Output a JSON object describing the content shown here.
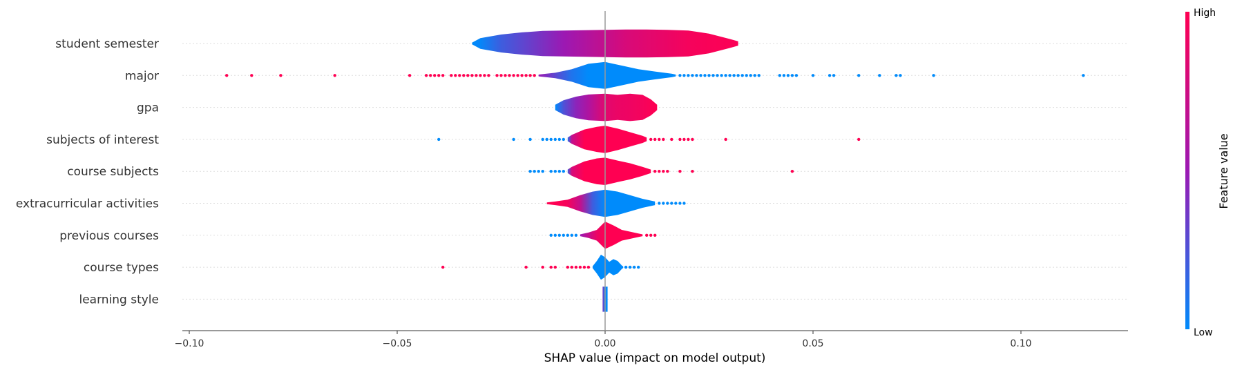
{
  "chart_data": {
    "type": "scatter",
    "subtype": "shap-violin-summary",
    "xlabel": "SHAP value (impact on model output)",
    "xlim": [
      -0.102,
      0.125
    ],
    "xticks": [
      -0.1,
      -0.05,
      0.0,
      0.05,
      0.1
    ],
    "xtick_labels": [
      "−0.10",
      "−0.05",
      "0.00",
      "0.05",
      "0.10"
    ],
    "colorbar": {
      "label": "Feature value",
      "high_label": "High",
      "low_label": "Low",
      "low_color": "#008bfb",
      "high_color": "#ff0052"
    },
    "features": [
      {
        "name": "student semester",
        "violin": [
          [
            -0.032,
            0.05,
            0.0
          ],
          [
            -0.03,
            0.3,
            0.02
          ],
          [
            -0.025,
            0.5,
            0.2
          ],
          [
            -0.02,
            0.62,
            0.3
          ],
          [
            -0.015,
            0.7,
            0.4
          ],
          [
            -0.01,
            0.72,
            0.5
          ],
          [
            -0.005,
            0.74,
            0.6
          ],
          [
            0.0,
            0.76,
            0.7
          ],
          [
            0.005,
            0.78,
            0.8
          ],
          [
            0.01,
            0.78,
            0.85
          ],
          [
            0.015,
            0.76,
            0.9
          ],
          [
            0.02,
            0.72,
            0.95
          ],
          [
            0.025,
            0.55,
            0.97
          ],
          [
            0.03,
            0.25,
            0.98
          ],
          [
            0.032,
            0.12,
            0.98
          ]
        ],
        "points": []
      },
      {
        "name": "major",
        "violin": [
          [
            -0.016,
            0.05,
            0.5
          ],
          [
            -0.012,
            0.15,
            0.3
          ],
          [
            -0.008,
            0.35,
            0.1
          ],
          [
            -0.004,
            0.65,
            0.0
          ],
          [
            0.0,
            0.75,
            0.0
          ],
          [
            0.004,
            0.55,
            0.0
          ],
          [
            0.008,
            0.35,
            0.0
          ],
          [
            0.012,
            0.22,
            0.0
          ],
          [
            0.016,
            0.1,
            0.0
          ],
          [
            0.017,
            0.05,
            0.0
          ]
        ],
        "points": [
          [
            -0.091,
            1
          ],
          [
            -0.085,
            1
          ],
          [
            -0.078,
            1
          ],
          [
            -0.065,
            1
          ],
          [
            -0.047,
            1
          ],
          [
            -0.043,
            1
          ],
          [
            -0.042,
            1
          ],
          [
            -0.041,
            1
          ],
          [
            -0.04,
            1
          ],
          [
            -0.039,
            1
          ],
          [
            -0.037,
            1
          ],
          [
            -0.036,
            1
          ],
          [
            -0.035,
            1
          ],
          [
            -0.034,
            1
          ],
          [
            -0.033,
            1
          ],
          [
            -0.032,
            1
          ],
          [
            -0.031,
            1
          ],
          [
            -0.03,
            1
          ],
          [
            -0.029,
            1
          ],
          [
            -0.028,
            1
          ],
          [
            -0.026,
            1
          ],
          [
            -0.025,
            1
          ],
          [
            -0.024,
            1
          ],
          [
            -0.023,
            1
          ],
          [
            -0.022,
            1
          ],
          [
            -0.021,
            1
          ],
          [
            -0.02,
            1
          ],
          [
            -0.019,
            1
          ],
          [
            -0.018,
            1
          ],
          [
            -0.017,
            1
          ],
          [
            0.018,
            0
          ],
          [
            0.019,
            0
          ],
          [
            0.02,
            0
          ],
          [
            0.021,
            0
          ],
          [
            0.022,
            0
          ],
          [
            0.023,
            0
          ],
          [
            0.024,
            0
          ],
          [
            0.025,
            0
          ],
          [
            0.026,
            0
          ],
          [
            0.027,
            0
          ],
          [
            0.028,
            0
          ],
          [
            0.029,
            0
          ],
          [
            0.03,
            0
          ],
          [
            0.031,
            0
          ],
          [
            0.032,
            0
          ],
          [
            0.033,
            0
          ],
          [
            0.034,
            0
          ],
          [
            0.035,
            0
          ],
          [
            0.036,
            0
          ],
          [
            0.037,
            0
          ],
          [
            0.042,
            0
          ],
          [
            0.043,
            0
          ],
          [
            0.044,
            0
          ],
          [
            0.045,
            0
          ],
          [
            0.046,
            0
          ],
          [
            0.05,
            0
          ],
          [
            0.054,
            0
          ],
          [
            0.055,
            0
          ],
          [
            0.061,
            0
          ],
          [
            0.066,
            0
          ],
          [
            0.07,
            0
          ],
          [
            0.071,
            0
          ],
          [
            0.079,
            0
          ],
          [
            0.115,
            0
          ]
        ]
      },
      {
        "name": "gpa",
        "violin": [
          [
            -0.012,
            0.15,
            0.0
          ],
          [
            -0.01,
            0.4,
            0.25
          ],
          [
            -0.007,
            0.6,
            0.45
          ],
          [
            -0.004,
            0.72,
            0.6
          ],
          [
            0.0,
            0.76,
            0.85
          ],
          [
            0.003,
            0.7,
            0.9
          ],
          [
            0.006,
            0.76,
            0.92
          ],
          [
            0.009,
            0.7,
            0.95
          ],
          [
            0.011,
            0.45,
            0.98
          ],
          [
            0.0125,
            0.15,
            1.0
          ]
        ],
        "points": []
      },
      {
        "name": "subjects of interest",
        "violin": [
          [
            -0.009,
            0.1,
            0.1
          ],
          [
            -0.008,
            0.25,
            0.7
          ],
          [
            -0.005,
            0.55,
            1.0
          ],
          [
            -0.002,
            0.7,
            1.0
          ],
          [
            0.0,
            0.76,
            1.0
          ],
          [
            0.003,
            0.6,
            1.0
          ],
          [
            0.006,
            0.4,
            1.0
          ],
          [
            0.009,
            0.2,
            1.0
          ],
          [
            0.01,
            0.1,
            1.0
          ]
        ],
        "points": [
          [
            -0.04,
            0
          ],
          [
            -0.022,
            0
          ],
          [
            -0.018,
            0
          ],
          [
            -0.015,
            0
          ],
          [
            -0.014,
            0
          ],
          [
            -0.013,
            0
          ],
          [
            -0.012,
            0
          ],
          [
            -0.011,
            0
          ],
          [
            -0.01,
            0
          ],
          [
            0.011,
            1
          ],
          [
            0.012,
            1
          ],
          [
            0.013,
            1
          ],
          [
            0.014,
            1
          ],
          [
            0.016,
            1
          ],
          [
            0.018,
            1
          ],
          [
            0.019,
            1
          ],
          [
            0.02,
            1
          ],
          [
            0.021,
            1
          ],
          [
            0.029,
            1
          ],
          [
            0.061,
            1
          ]
        ]
      },
      {
        "name": "course subjects",
        "violin": [
          [
            -0.009,
            0.1,
            0.2
          ],
          [
            -0.008,
            0.25,
            0.8
          ],
          [
            -0.005,
            0.55,
            1.0
          ],
          [
            -0.002,
            0.72,
            1.0
          ],
          [
            0.0,
            0.76,
            1.0
          ],
          [
            0.003,
            0.6,
            1.0
          ],
          [
            0.006,
            0.45,
            1.0
          ],
          [
            0.009,
            0.25,
            1.0
          ],
          [
            0.011,
            0.1,
            1.0
          ]
        ],
        "points": [
          [
            -0.018,
            0
          ],
          [
            -0.017,
            0
          ],
          [
            -0.016,
            0
          ],
          [
            -0.015,
            0
          ],
          [
            -0.013,
            0
          ],
          [
            -0.012,
            0
          ],
          [
            -0.011,
            0
          ],
          [
            -0.01,
            0
          ],
          [
            0.012,
            1
          ],
          [
            0.013,
            1
          ],
          [
            0.014,
            1
          ],
          [
            0.015,
            1
          ],
          [
            0.018,
            1
          ],
          [
            0.021,
            1
          ],
          [
            0.045,
            1
          ]
        ]
      },
      {
        "name": "extracurricular activities",
        "violin": [
          [
            -0.014,
            0.05,
            1.0
          ],
          [
            -0.012,
            0.1,
            1.0
          ],
          [
            -0.009,
            0.2,
            0.95
          ],
          [
            -0.006,
            0.45,
            0.7
          ],
          [
            -0.003,
            0.65,
            0.2
          ],
          [
            0.0,
            0.76,
            0.0
          ],
          [
            0.003,
            0.65,
            0.0
          ],
          [
            0.006,
            0.45,
            0.0
          ],
          [
            0.009,
            0.25,
            0.0
          ],
          [
            0.012,
            0.1,
            0.0
          ]
        ],
        "points": [
          [
            0.013,
            0
          ],
          [
            0.014,
            0
          ],
          [
            0.015,
            0
          ],
          [
            0.016,
            0
          ],
          [
            0.017,
            0
          ],
          [
            0.018,
            0
          ],
          [
            0.019,
            0
          ]
        ]
      },
      {
        "name": "previous courses",
        "violin": [
          [
            -0.006,
            0.05,
            0.5
          ],
          [
            -0.004,
            0.15,
            0.7
          ],
          [
            -0.002,
            0.3,
            0.9
          ],
          [
            0.0,
            0.76,
            1.0
          ],
          [
            0.002,
            0.55,
            1.0
          ],
          [
            0.004,
            0.3,
            1.0
          ],
          [
            0.006,
            0.2,
            1.0
          ],
          [
            0.008,
            0.1,
            1.0
          ],
          [
            0.009,
            0.05,
            1.0
          ]
        ],
        "points": [
          [
            -0.013,
            0
          ],
          [
            -0.012,
            0
          ],
          [
            -0.011,
            0
          ],
          [
            -0.01,
            0
          ],
          [
            -0.009,
            0
          ],
          [
            -0.008,
            0
          ],
          [
            -0.007,
            0
          ],
          [
            0.01,
            1
          ],
          [
            0.011,
            1
          ],
          [
            0.012,
            1
          ]
        ]
      },
      {
        "name": "course types",
        "violin": [
          [
            -0.003,
            0.05,
            0.0
          ],
          [
            -0.002,
            0.35,
            0.0
          ],
          [
            -0.001,
            0.7,
            0.0
          ],
          [
            0.0,
            0.55,
            0.0
          ],
          [
            0.001,
            0.3,
            0.0
          ],
          [
            0.002,
            0.45,
            0.0
          ],
          [
            0.003,
            0.35,
            0.0
          ],
          [
            0.004,
            0.1,
            0.0
          ]
        ],
        "points": [
          [
            -0.039,
            1
          ],
          [
            -0.019,
            1
          ],
          [
            -0.015,
            1
          ],
          [
            -0.013,
            1
          ],
          [
            -0.012,
            1
          ],
          [
            -0.009,
            1
          ],
          [
            -0.008,
            1
          ],
          [
            -0.007,
            1
          ],
          [
            -0.006,
            1
          ],
          [
            -0.005,
            1
          ],
          [
            -0.004,
            1
          ],
          [
            0.004,
            0
          ],
          [
            0.005,
            0
          ],
          [
            0.006,
            0
          ],
          [
            0.007,
            0
          ],
          [
            0.008,
            0
          ]
        ]
      },
      {
        "name": "learning style",
        "violin": [
          [
            -0.0006,
            0.7,
            0.4
          ],
          [
            0.0,
            0.7,
            0.0
          ],
          [
            0.0006,
            0.7,
            0.0
          ]
        ],
        "points": []
      }
    ]
  }
}
